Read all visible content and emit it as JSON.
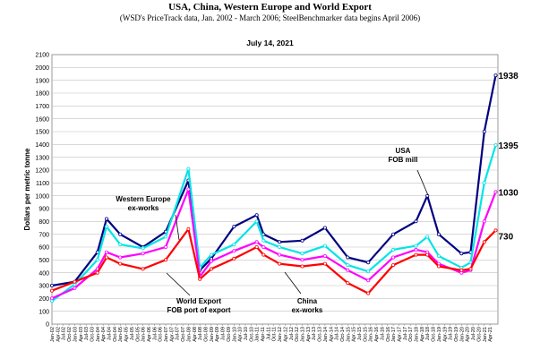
{
  "chart_data": {
    "type": "line",
    "title": "USA, China, Western Europe and World Export",
    "subtitle": "(WSD's PriceTrack data, Jan. 2002 - March 2006; SteelBenchmarker  data begins April 2006)",
    "date_label": "July 14, 2021",
    "ylabel": "Dollars per metric tonne",
    "ylim": [
      0,
      2100
    ],
    "y_ticks": [
      "0",
      "100",
      "200",
      "300",
      "400",
      "500",
      "600",
      "700",
      "800",
      "900",
      "1000",
      "1100",
      "1200",
      "1300",
      "1400",
      "1500",
      "1600",
      "1700",
      "1800",
      "1900",
      "2000",
      "2100"
    ],
    "grid": true,
    "x_tick_labels": [
      "Jan-02",
      "Apr-02",
      "Jul-02",
      "Oct-02",
      "Jan-03",
      "Apr-03",
      "Jul-03",
      "Oct-03",
      "Jan-04",
      "Apr-04",
      "Jul-04",
      "Oct-04",
      "Jan-05",
      "Apr-05",
      "Jul-05",
      "Oct-05",
      "Jan-06",
      "Apr-06",
      "Jul-06",
      "Oct-06",
      "Jan-07",
      "Apr-07",
      "Jul-07",
      "Oct-07",
      "Jan-08",
      "Apr-08",
      "Jul-08",
      "Oct-08",
      "Jan-09",
      "Apr-09",
      "Jul-09",
      "Oct-09",
      "Jan-10",
      "Apr-10",
      "Jul-10",
      "Oct-10",
      "Jan-11",
      "Apr-11",
      "Jul-11",
      "Oct-11",
      "Jan-12",
      "Apr-12",
      "Jul-12",
      "Oct-12",
      "Jan-13",
      "Apr-13",
      "Jul-13",
      "Oct-13",
      "Jan-14",
      "Apr-14",
      "Jul-14",
      "Oct-14",
      "Jan-15",
      "Apr-15",
      "Jul-15",
      "Oct-15",
      "Jan-16",
      "Apr-16",
      "Jul-16",
      "Oct-16",
      "Jan-17",
      "Apr-17",
      "Jul-17",
      "Oct-17",
      "Jan-18",
      "Apr-18",
      "Jul-18",
      "Oct-18",
      "Jan-19",
      "Apr-19",
      "Jul-19",
      "Oct-19",
      "Jan-20",
      "Apr-20",
      "Jul-20",
      "Oct-20",
      "Jan-21",
      "Apr-21"
    ],
    "x_points": [
      2002.0,
      2003.0,
      2004.0,
      2004.4,
      2005.0,
      2006.0,
      2007.0,
      2008.0,
      2008.5,
      2009.0,
      2010.0,
      2011.0,
      2011.3,
      2012.0,
      2013.0,
      2014.0,
      2015.0,
      2015.9,
      2017.0,
      2018.0,
      2018.5,
      2019.0,
      2020.0,
      2020.4,
      2021.0,
      2021.5
    ],
    "series": [
      {
        "name": "USA",
        "end_label": "1938",
        "color": "#000080",
        "values": [
          300,
          330,
          560,
          820,
          700,
          600,
          720,
          1120,
          420,
          510,
          760,
          850,
          700,
          640,
          650,
          750,
          520,
          480,
          700,
          800,
          1000,
          700,
          550,
          560,
          1500,
          1938
        ]
      },
      {
        "name": "Western Europe",
        "end_label": "1395",
        "color": "#00e5e5",
        "values": [
          180,
          310,
          500,
          760,
          620,
          590,
          680,
          1210,
          440,
          540,
          620,
          800,
          650,
          600,
          550,
          610,
          460,
          410,
          580,
          610,
          680,
          530,
          440,
          480,
          1100,
          1395
        ]
      },
      {
        "name": "World Export",
        "end_label": "1030",
        "color": "#ff00ff",
        "values": [
          200,
          280,
          430,
          560,
          520,
          550,
          600,
          1050,
          370,
          490,
          570,
          640,
          600,
          540,
          500,
          530,
          420,
          340,
          520,
          580,
          560,
          470,
          400,
          420,
          800,
          1030
        ]
      },
      {
        "name": "China",
        "end_label": "730",
        "color": "#ff0000",
        "values": [
          260,
          330,
          400,
          520,
          470,
          430,
          500,
          740,
          350,
          430,
          510,
          600,
          540,
          470,
          450,
          470,
          320,
          240,
          460,
          540,
          540,
          450,
          420,
          430,
          640,
          730
        ]
      }
    ],
    "annotations": [
      "Western Europe\nex-works",
      "USA\nFOB mill",
      "World Export\nFOB port of export",
      "China\nex-works"
    ]
  }
}
